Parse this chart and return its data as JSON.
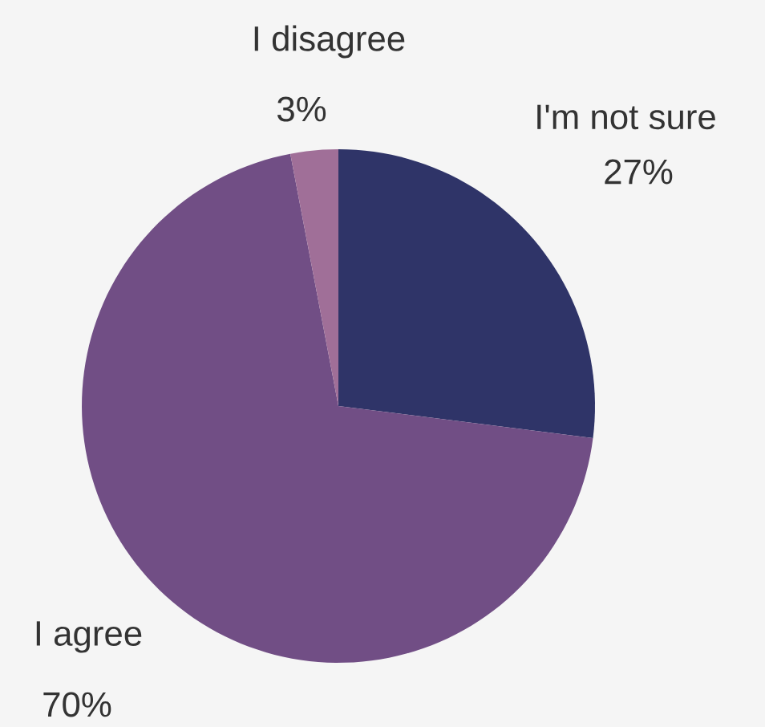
{
  "chart_data": {
    "type": "pie",
    "categories": [
      "I'm not sure",
      "I agree",
      "I disagree"
    ],
    "values": [
      27,
      70,
      3
    ],
    "value_labels": [
      "27%",
      "70%",
      "3%"
    ],
    "colors": [
      "#2f3468",
      "#714e85",
      "#a06f98"
    ]
  }
}
